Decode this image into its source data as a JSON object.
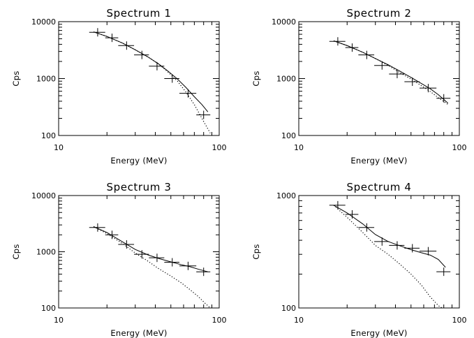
{
  "chart_data": [
    {
      "type": "line",
      "title": "Spectrum 1",
      "xlabel": "Energy (MeV)",
      "ylabel": "Cps",
      "xscale": "log",
      "yscale": "log",
      "xlim": [
        10,
        100
      ],
      "ylim": [
        100,
        10000
      ],
      "xticks": [
        10,
        100
      ],
      "yticks": [
        100,
        1000,
        10000
      ],
      "grid": false,
      "data": {
        "energy": [
          17.5,
          21.5,
          26.5,
          33,
          41,
          51,
          64,
          80
        ],
        "energy_err": [
          [
            15.5,
            19.5
          ],
          [
            19.5,
            23.5
          ],
          [
            23.5,
            29.5
          ],
          [
            29.5,
            36.5
          ],
          [
            36.5,
            45.5
          ],
          [
            45.5,
            56.5
          ],
          [
            56.5,
            72
          ],
          [
            72,
            88
          ]
        ],
        "cps": [
          6500,
          5200,
          3800,
          2600,
          1650,
          1000,
          550,
          230
        ]
      },
      "model": {
        "energy": [
          16.5,
          20,
          25,
          30,
          36,
          42,
          48,
          55,
          62,
          70,
          78,
          85
        ],
        "cps": [
          6600,
          5500,
          4200,
          3200,
          2400,
          1800,
          1350,
          980,
          700,
          480,
          350,
          260
        ]
      },
      "background": {
        "energy": [
          16.5,
          20,
          25,
          30,
          36,
          42,
          48,
          55,
          62,
          70,
          78,
          88
        ],
        "cps": [
          6600,
          5500,
          4200,
          3200,
          2400,
          1800,
          1300,
          900,
          580,
          350,
          200,
          110
        ]
      }
    },
    {
      "type": "line",
      "title": "Spectrum 2",
      "xlabel": "Energy (MeV)",
      "ylabel": "Cps",
      "xscale": "log",
      "yscale": "log",
      "xlim": [
        10,
        100
      ],
      "ylim": [
        100,
        10000
      ],
      "xticks": [
        10,
        100
      ],
      "yticks": [
        100,
        1000,
        10000
      ],
      "grid": false,
      "data": {
        "energy": [
          17.5,
          21.5,
          26.5,
          33,
          41,
          51,
          64,
          80
        ],
        "energy_err": [
          [
            15.5,
            19.5
          ],
          [
            19.5,
            23.5
          ],
          [
            23.5,
            29.5
          ],
          [
            29.5,
            36.5
          ],
          [
            36.5,
            45.5
          ],
          [
            45.5,
            56.5
          ],
          [
            56.5,
            72
          ],
          [
            72,
            88
          ]
        ],
        "cps": [
          4500,
          3500,
          2600,
          1700,
          1200,
          880,
          680,
          450
        ]
      },
      "model": {
        "energy": [
          16.5,
          20,
          25,
          30,
          36,
          42,
          50,
          58,
          66,
          74,
          85
        ],
        "cps": [
          4600,
          3800,
          2900,
          2250,
          1750,
          1380,
          1050,
          820,
          660,
          520,
          370
        ]
      },
      "background": {
        "energy": [
          16.5,
          20,
          25,
          30,
          36,
          42,
          50,
          58,
          66,
          74,
          85
        ],
        "cps": [
          4600,
          3800,
          2900,
          2250,
          1700,
          1300,
          980,
          750,
          590,
          460,
          350
        ]
      }
    },
    {
      "type": "line",
      "title": "Spectrum 3",
      "xlabel": "Energy (MeV)",
      "ylabel": "Cps",
      "xscale": "log",
      "yscale": "log",
      "xlim": [
        10,
        100
      ],
      "ylim": [
        100,
        10000
      ],
      "xticks": [
        10,
        100
      ],
      "yticks": [
        100,
        1000,
        10000
      ],
      "grid": false,
      "data": {
        "energy": [
          17.5,
          21.5,
          26.5,
          33,
          41,
          51,
          64,
          80
        ],
        "energy_err": [
          [
            15.5,
            19.5
          ],
          [
            19.5,
            23.5
          ],
          [
            23.5,
            29.5
          ],
          [
            29.5,
            36.5
          ],
          [
            36.5,
            45.5
          ],
          [
            45.5,
            56.5
          ],
          [
            56.5,
            72
          ],
          [
            72,
            88
          ]
        ],
        "cps": [
          2700,
          2000,
          1350,
          900,
          780,
          650,
          560,
          440
        ]
      },
      "model": {
        "energy": [
          16.5,
          20,
          25,
          30,
          36,
          42,
          50,
          58,
          66,
          74,
          85
        ],
        "cps": [
          2800,
          2200,
          1500,
          1100,
          880,
          760,
          660,
          590,
          540,
          490,
          440
        ]
      },
      "background": {
        "energy": [
          16.5,
          20,
          25,
          30,
          36,
          42,
          50,
          58,
          66,
          74,
          82,
          88
        ],
        "cps": [
          2800,
          2100,
          1400,
          950,
          680,
          500,
          370,
          280,
          210,
          160,
          120,
          100
        ]
      }
    },
    {
      "type": "line",
      "title": "Spectrum 4",
      "xlabel": "Energy (MeV)",
      "ylabel": "Cps",
      "xscale": "log",
      "yscale": "log",
      "xlim": [
        10,
        100
      ],
      "ylim": [
        100,
        1000
      ],
      "xticks": [
        10,
        100
      ],
      "yticks": [
        100,
        1000
      ],
      "grid": false,
      "data": {
        "energy": [
          17.5,
          21.5,
          26.5,
          33,
          41,
          51,
          64,
          80
        ],
        "energy_err": [
          [
            15.5,
            19.5
          ],
          [
            19.5,
            23.5
          ],
          [
            23.5,
            29.5
          ],
          [
            29.5,
            36.5
          ],
          [
            36.5,
            45.5
          ],
          [
            45.5,
            56.5
          ],
          [
            56.5,
            72
          ],
          [
            72,
            88
          ]
        ],
        "cps": [
          820,
          680,
          520,
          390,
          360,
          340,
          320,
          210
        ]
      },
      "model": {
        "energy": [
          16.5,
          20,
          25,
          30,
          36,
          42,
          50,
          58,
          66,
          74,
          82
        ],
        "cps": [
          820,
          700,
          560,
          450,
          390,
          360,
          330,
          310,
          295,
          270,
          230
        ]
      },
      "background": {
        "energy": [
          16.5,
          20,
          25,
          30,
          36,
          42,
          50,
          58,
          66,
          74,
          78
        ],
        "cps": [
          820,
          640,
          470,
          360,
          300,
          250,
          200,
          160,
          125,
          105,
          100
        ]
      }
    }
  ]
}
